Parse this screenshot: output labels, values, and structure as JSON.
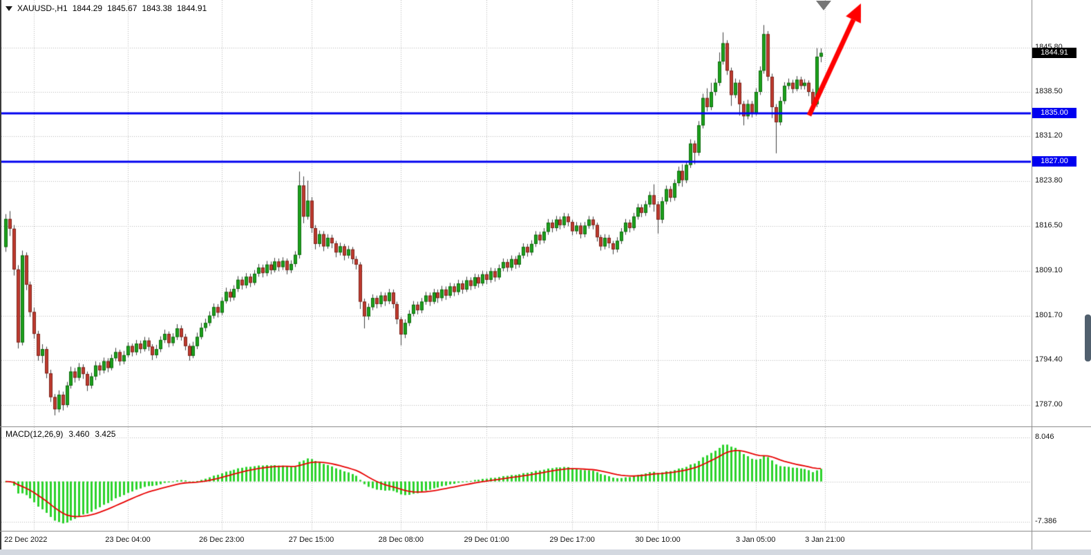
{
  "header": {
    "symbol": "XAUUSD-,H1",
    "open": "1844.29",
    "high": "1845.67",
    "low": "1843.38",
    "close": "1844.91"
  },
  "macd_header": {
    "title": "MACD(12,26,9)",
    "macd_value": "3.460",
    "signal_value": "3.425"
  },
  "colors": {
    "background": "#ffffff",
    "grid": "#b5b5b5",
    "bull": "#1ca11c",
    "bear": "#bf3a2e",
    "bull_border": "#0e6b0e",
    "bear_border": "#7d241c",
    "wick": "#3f3f3f",
    "hline": "#0000f0",
    "arrow": "#ff0000",
    "macd_histogram": "#2bd22b",
    "macd_signal": "#e80000",
    "current_badge_bg": "#000000",
    "badge_text": "#ffffff"
  },
  "chart_data": {
    "type": "candlestick",
    "symbol": "XAUUSD-",
    "timeframe": "H1",
    "title": "XAUUSD-,H1 1844.29 1845.67 1843.38 1844.91",
    "grid": true,
    "y_axis_side": "right",
    "ylim": [
      1783.0,
      1853.6
    ],
    "y_ticks": [
      {
        "label": "1845.80",
        "value": 1845.8
      },
      {
        "label": "1838.50",
        "value": 1838.5
      },
      {
        "label": "1831.20",
        "value": 1831.2
      },
      {
        "label": "1823.80",
        "value": 1823.8
      },
      {
        "label": "1816.50",
        "value": 1816.5
      },
      {
        "label": "1809.10",
        "value": 1809.1
      },
      {
        "label": "1801.70",
        "value": 1801.7
      },
      {
        "label": "1794.40",
        "value": 1794.4
      },
      {
        "label": "1787.00",
        "value": 1787.0
      }
    ],
    "x_ticks": [
      {
        "label": "22 Dec 2022",
        "bar": 7
      },
      {
        "label": "23 Dec 04:00",
        "bar": 30
      },
      {
        "label": "26 Dec 23:00",
        "bar": 53
      },
      {
        "label": "27 Dec 15:00",
        "bar": 75
      },
      {
        "label": "28 Dec 08:00",
        "bar": 97
      },
      {
        "label": "29 Dec 01:00",
        "bar": 118
      },
      {
        "label": "29 Dec 17:00",
        "bar": 139
      },
      {
        "label": "30 Dec 10:00",
        "bar": 160
      },
      {
        "label": "3 Jan 05:00",
        "bar": 184
      },
      {
        "label": "3 Jan 21:00",
        "bar": 201
      }
    ],
    "current_price": {
      "label": "1844.91",
      "value": 1844.91
    },
    "hlines": [
      {
        "label": "1835.00",
        "value": 1835.0
      },
      {
        "label": "1827.00",
        "value": 1827.0
      }
    ],
    "candles": [
      [
        1813.0,
        1818.4,
        1812.2,
        1817.6
      ],
      [
        1817.6,
        1818.9,
        1814.8,
        1816.0
      ],
      [
        1816.0,
        1816.6,
        1808.3,
        1809.3
      ],
      [
        1809.3,
        1810.0,
        1796.3,
        1797.3
      ],
      [
        1797.3,
        1812.4,
        1796.8,
        1811.6
      ],
      [
        1811.6,
        1812.1,
        1805.9,
        1806.8
      ],
      [
        1806.8,
        1807.3,
        1801.5,
        1802.3
      ],
      [
        1802.3,
        1803.0,
        1797.9,
        1798.7
      ],
      [
        1798.7,
        1799.2,
        1794.3,
        1795.1
      ],
      [
        1795.1,
        1797.0,
        1793.9,
        1796.2
      ],
      [
        1796.2,
        1796.6,
        1791.4,
        1792.2
      ],
      [
        1792.2,
        1792.8,
        1787.5,
        1788.3
      ],
      [
        1788.3,
        1788.8,
        1785.3,
        1786.3
      ],
      [
        1786.3,
        1789.4,
        1785.8,
        1788.7
      ],
      [
        1788.7,
        1789.2,
        1786.1,
        1787.0
      ],
      [
        1787.0,
        1790.8,
        1786.6,
        1790.2
      ],
      [
        1790.2,
        1793.3,
        1789.7,
        1792.5
      ],
      [
        1792.5,
        1793.1,
        1790.7,
        1791.5
      ],
      [
        1791.5,
        1793.9,
        1791.0,
        1793.2
      ],
      [
        1793.2,
        1793.7,
        1791.3,
        1792.1
      ],
      [
        1792.1,
        1792.5,
        1789.3,
        1790.2
      ],
      [
        1790.2,
        1792.3,
        1789.7,
        1791.7
      ],
      [
        1791.7,
        1794.2,
        1791.1,
        1793.5
      ],
      [
        1793.5,
        1794.0,
        1791.9,
        1792.7
      ],
      [
        1792.7,
        1794.8,
        1792.2,
        1794.2
      ],
      [
        1794.2,
        1794.7,
        1792.4,
        1793.1
      ],
      [
        1793.1,
        1795.3,
        1792.7,
        1794.7
      ],
      [
        1794.7,
        1796.4,
        1794.2,
        1795.7
      ],
      [
        1795.7,
        1796.1,
        1793.5,
        1794.2
      ],
      [
        1794.2,
        1795.9,
        1793.7,
        1795.2
      ],
      [
        1795.2,
        1797.3,
        1794.8,
        1796.7
      ],
      [
        1796.7,
        1797.1,
        1795.0,
        1795.7
      ],
      [
        1795.7,
        1797.7,
        1795.2,
        1797.1
      ],
      [
        1797.1,
        1797.6,
        1795.5,
        1796.2
      ],
      [
        1796.2,
        1798.2,
        1795.8,
        1797.6
      ],
      [
        1797.6,
        1798.1,
        1795.9,
        1796.6
      ],
      [
        1796.6,
        1797.0,
        1794.4,
        1795.2
      ],
      [
        1795.2,
        1796.9,
        1794.7,
        1796.2
      ],
      [
        1796.2,
        1798.3,
        1795.7,
        1797.7
      ],
      [
        1797.7,
        1799.4,
        1797.2,
        1798.7
      ],
      [
        1798.7,
        1799.1,
        1796.5,
        1797.2
      ],
      [
        1797.2,
        1798.8,
        1796.7,
        1798.2
      ],
      [
        1798.2,
        1800.3,
        1797.7,
        1799.6
      ],
      [
        1799.6,
        1800.1,
        1797.6,
        1798.2
      ],
      [
        1798.2,
        1798.7,
        1796.0,
        1796.7
      ],
      [
        1796.7,
        1797.1,
        1794.3,
        1795.1
      ],
      [
        1795.1,
        1797.4,
        1794.7,
        1796.7
      ],
      [
        1796.7,
        1798.9,
        1796.2,
        1798.2
      ],
      [
        1798.2,
        1800.5,
        1797.8,
        1799.7
      ],
      [
        1799.7,
        1801.2,
        1799.1,
        1800.5
      ],
      [
        1800.5,
        1802.4,
        1800.0,
        1801.7
      ],
      [
        1801.7,
        1803.7,
        1801.2,
        1803.1
      ],
      [
        1803.1,
        1803.6,
        1801.4,
        1802.2
      ],
      [
        1802.2,
        1804.7,
        1801.8,
        1804.1
      ],
      [
        1804.1,
        1806.3,
        1803.7,
        1805.6
      ],
      [
        1805.6,
        1806.1,
        1804.0,
        1804.7
      ],
      [
        1804.7,
        1806.7,
        1804.2,
        1806.1
      ],
      [
        1806.1,
        1808.2,
        1805.6,
        1807.6
      ],
      [
        1807.6,
        1808.1,
        1806.0,
        1806.7
      ],
      [
        1806.7,
        1808.7,
        1806.2,
        1808.1
      ],
      [
        1808.1,
        1808.6,
        1806.4,
        1807.1
      ],
      [
        1807.1,
        1809.2,
        1806.7,
        1808.6
      ],
      [
        1808.6,
        1810.2,
        1808.1,
        1809.6
      ],
      [
        1809.6,
        1810.1,
        1808.0,
        1808.7
      ],
      [
        1808.7,
        1810.7,
        1808.2,
        1810.1
      ],
      [
        1810.1,
        1810.6,
        1808.5,
        1809.2
      ],
      [
        1809.2,
        1811.2,
        1808.8,
        1810.6
      ],
      [
        1810.6,
        1811.1,
        1809.0,
        1809.7
      ],
      [
        1809.7,
        1811.3,
        1809.2,
        1810.7
      ],
      [
        1810.7,
        1811.1,
        1808.5,
        1809.2
      ],
      [
        1809.2,
        1810.8,
        1808.7,
        1810.2
      ],
      [
        1810.2,
        1812.3,
        1809.7,
        1811.7
      ],
      [
        1811.7,
        1825.4,
        1811.1,
        1823.1
      ],
      [
        1823.1,
        1824.6,
        1816.9,
        1818.0
      ],
      [
        1818.0,
        1823.9,
        1817.5,
        1820.6
      ],
      [
        1820.6,
        1821.2,
        1815.3,
        1816.1
      ],
      [
        1816.1,
        1816.6,
        1812.6,
        1813.5
      ],
      [
        1813.5,
        1815.7,
        1813.0,
        1815.1
      ],
      [
        1815.1,
        1815.6,
        1812.3,
        1813.1
      ],
      [
        1813.1,
        1815.1,
        1812.7,
        1814.5
      ],
      [
        1814.5,
        1815.0,
        1812.8,
        1813.6
      ],
      [
        1813.6,
        1814.0,
        1811.3,
        1812.1
      ],
      [
        1812.1,
        1813.7,
        1811.6,
        1813.1
      ],
      [
        1813.1,
        1813.5,
        1810.8,
        1811.6
      ],
      [
        1811.6,
        1813.2,
        1811.1,
        1812.6
      ],
      [
        1812.6,
        1813.0,
        1810.2,
        1811.0
      ],
      [
        1811.0,
        1811.5,
        1809.3,
        1810.1
      ],
      [
        1810.1,
        1810.5,
        1802.8,
        1804.0
      ],
      [
        1804.0,
        1804.5,
        1799.6,
        1801.6
      ],
      [
        1801.6,
        1803.7,
        1801.0,
        1803.1
      ],
      [
        1803.1,
        1805.2,
        1802.6,
        1804.6
      ],
      [
        1804.6,
        1805.0,
        1802.9,
        1803.6
      ],
      [
        1803.6,
        1805.6,
        1803.1,
        1805.0
      ],
      [
        1805.0,
        1805.5,
        1803.3,
        1804.1
      ],
      [
        1804.1,
        1806.1,
        1803.6,
        1805.5
      ],
      [
        1805.5,
        1806.0,
        1802.9,
        1803.6
      ],
      [
        1803.6,
        1804.0,
        1800.3,
        1801.1
      ],
      [
        1801.1,
        1801.5,
        1796.8,
        1798.6
      ],
      [
        1798.6,
        1801.1,
        1798.0,
        1800.5
      ],
      [
        1800.5,
        1802.6,
        1800.0,
        1802.0
      ],
      [
        1802.0,
        1804.1,
        1801.6,
        1803.5
      ],
      [
        1803.5,
        1804.0,
        1801.9,
        1802.6
      ],
      [
        1802.6,
        1804.6,
        1802.1,
        1804.0
      ],
      [
        1804.0,
        1805.6,
        1803.5,
        1805.0
      ],
      [
        1805.0,
        1805.5,
        1803.3,
        1804.0
      ],
      [
        1804.0,
        1806.1,
        1803.6,
        1805.5
      ],
      [
        1805.5,
        1806.0,
        1803.8,
        1804.6
      ],
      [
        1804.6,
        1806.6,
        1804.1,
        1806.0
      ],
      [
        1806.0,
        1806.5,
        1804.3,
        1805.0
      ],
      [
        1805.0,
        1807.1,
        1804.6,
        1806.5
      ],
      [
        1806.5,
        1807.0,
        1804.9,
        1805.6
      ],
      [
        1805.6,
        1807.6,
        1805.1,
        1807.0
      ],
      [
        1807.0,
        1807.5,
        1805.3,
        1806.0
      ],
      [
        1806.0,
        1808.1,
        1805.6,
        1807.5
      ],
      [
        1807.5,
        1808.0,
        1805.9,
        1806.6
      ],
      [
        1806.6,
        1808.6,
        1806.1,
        1808.0
      ],
      [
        1808.0,
        1808.5,
        1806.3,
        1807.0
      ],
      [
        1807.0,
        1809.1,
        1806.6,
        1808.5
      ],
      [
        1808.5,
        1809.0,
        1806.9,
        1807.6
      ],
      [
        1807.6,
        1809.6,
        1807.1,
        1809.0
      ],
      [
        1809.0,
        1809.5,
        1807.3,
        1808.0
      ],
      [
        1808.0,
        1810.1,
        1807.6,
        1809.5
      ],
      [
        1809.5,
        1811.1,
        1809.0,
        1810.5
      ],
      [
        1810.5,
        1811.0,
        1808.9,
        1809.6
      ],
      [
        1809.6,
        1811.6,
        1809.1,
        1811.0
      ],
      [
        1811.0,
        1811.5,
        1809.4,
        1810.1
      ],
      [
        1810.1,
        1812.1,
        1809.6,
        1811.6
      ],
      [
        1811.6,
        1813.6,
        1811.1,
        1813.0
      ],
      [
        1813.0,
        1813.5,
        1811.4,
        1812.1
      ],
      [
        1812.1,
        1814.1,
        1811.6,
        1813.5
      ],
      [
        1813.5,
        1815.6,
        1813.0,
        1815.0
      ],
      [
        1815.0,
        1815.5,
        1813.4,
        1814.1
      ],
      [
        1814.1,
        1816.1,
        1813.6,
        1815.5
      ],
      [
        1815.5,
        1817.6,
        1815.0,
        1817.0
      ],
      [
        1817.0,
        1817.5,
        1815.4,
        1816.1
      ],
      [
        1816.1,
        1818.1,
        1815.6,
        1817.5
      ],
      [
        1817.5,
        1818.0,
        1815.9,
        1816.6
      ],
      [
        1816.6,
        1818.6,
        1816.1,
        1818.0
      ],
      [
        1818.0,
        1818.5,
        1816.4,
        1817.1
      ],
      [
        1817.1,
        1817.5,
        1814.9,
        1815.6
      ],
      [
        1815.6,
        1817.1,
        1815.1,
        1816.5
      ],
      [
        1816.5,
        1817.0,
        1814.4,
        1815.1
      ],
      [
        1815.1,
        1817.1,
        1814.6,
        1816.5
      ],
      [
        1816.5,
        1818.1,
        1816.0,
        1817.5
      ],
      [
        1817.5,
        1818.0,
        1815.9,
        1816.6
      ],
      [
        1816.6,
        1817.0,
        1813.9,
        1814.6
      ],
      [
        1814.6,
        1815.0,
        1812.4,
        1813.1
      ],
      [
        1813.1,
        1815.1,
        1812.6,
        1814.5
      ],
      [
        1814.5,
        1815.0,
        1812.8,
        1813.6
      ],
      [
        1813.6,
        1814.0,
        1811.8,
        1812.6
      ],
      [
        1812.6,
        1814.6,
        1812.1,
        1814.0
      ],
      [
        1814.0,
        1816.1,
        1813.5,
        1815.5
      ],
      [
        1815.5,
        1817.6,
        1815.0,
        1817.0
      ],
      [
        1817.0,
        1817.5,
        1815.4,
        1816.1
      ],
      [
        1816.1,
        1818.6,
        1815.7,
        1818.0
      ],
      [
        1818.0,
        1820.1,
        1817.5,
        1819.5
      ],
      [
        1819.5,
        1820.0,
        1817.9,
        1818.6
      ],
      [
        1818.6,
        1820.6,
        1818.1,
        1820.0
      ],
      [
        1820.0,
        1822.1,
        1819.5,
        1821.5
      ],
      [
        1821.5,
        1823.3,
        1818.8,
        1820.0
      ],
      [
        1820.0,
        1820.5,
        1815.2,
        1817.5
      ],
      [
        1817.5,
        1821.2,
        1816.9,
        1820.5
      ],
      [
        1820.5,
        1823.1,
        1820.0,
        1822.5
      ],
      [
        1822.5,
        1823.0,
        1820.4,
        1821.1
      ],
      [
        1821.1,
        1824.1,
        1820.6,
        1823.5
      ],
      [
        1823.5,
        1826.2,
        1823.0,
        1825.5
      ],
      [
        1825.5,
        1826.6,
        1822.9,
        1824.0
      ],
      [
        1824.0,
        1827.1,
        1823.5,
        1826.5
      ],
      [
        1826.5,
        1830.7,
        1826.0,
        1830.0
      ],
      [
        1830.0,
        1830.5,
        1826.6,
        1828.5
      ],
      [
        1828.5,
        1833.7,
        1828.0,
        1833.0
      ],
      [
        1833.0,
        1838.2,
        1832.5,
        1837.5
      ],
      [
        1837.5,
        1839.1,
        1835.3,
        1836.0
      ],
      [
        1836.0,
        1840.0,
        1835.5,
        1838.5
      ],
      [
        1838.5,
        1840.7,
        1837.9,
        1840.0
      ],
      [
        1840.0,
        1845.0,
        1839.5,
        1843.5
      ],
      [
        1843.5,
        1848.3,
        1843.0,
        1846.5
      ],
      [
        1846.5,
        1847.0,
        1841.3,
        1842.0
      ],
      [
        1842.0,
        1842.5,
        1836.2,
        1838.0
      ],
      [
        1838.0,
        1840.7,
        1837.5,
        1840.0
      ],
      [
        1840.0,
        1840.5,
        1834.6,
        1836.5
      ],
      [
        1836.5,
        1837.0,
        1833.0,
        1834.5
      ],
      [
        1834.5,
        1837.2,
        1834.0,
        1836.5
      ],
      [
        1836.5,
        1837.0,
        1834.3,
        1835.0
      ],
      [
        1835.0,
        1839.1,
        1834.6,
        1838.5
      ],
      [
        1838.5,
        1842.7,
        1838.0,
        1842.0
      ],
      [
        1842.0,
        1849.5,
        1841.5,
        1848.0
      ],
      [
        1848.0,
        1848.5,
        1840.3,
        1841.0
      ],
      [
        1841.0,
        1841.5,
        1834.2,
        1836.0
      ],
      [
        1836.0,
        1836.5,
        1828.4,
        1833.5
      ],
      [
        1833.5,
        1837.7,
        1833.0,
        1837.0
      ],
      [
        1837.0,
        1840.1,
        1836.5,
        1839.5
      ],
      [
        1839.5,
        1840.7,
        1838.9,
        1840.0
      ],
      [
        1840.0,
        1840.5,
        1838.3,
        1839.0
      ],
      [
        1839.0,
        1841.1,
        1838.6,
        1840.5
      ],
      [
        1840.5,
        1841.0,
        1838.9,
        1839.5
      ],
      [
        1839.5,
        1840.6,
        1838.9,
        1840.0
      ],
      [
        1840.0,
        1840.4,
        1837.8,
        1838.5
      ],
      [
        1838.5,
        1839.0,
        1835.2,
        1836.5
      ],
      [
        1836.5,
        1845.7,
        1836.0,
        1844.3
      ],
      [
        1844.29,
        1845.67,
        1843.38,
        1844.91
      ]
    ],
    "macd": {
      "params": [
        12,
        26,
        9
      ],
      "current_macd": 3.46,
      "current_signal": 3.425,
      "zero_level": 0,
      "axis_ticks": [
        {
          "label": "8.046",
          "value": 8.046
        },
        {
          "label": "-7.386",
          "value": -7.386
        }
      ]
    }
  },
  "annotations": {
    "up_arrow": {
      "tail_x": 1171,
      "tail_y": 167,
      "tip_x": 1246,
      "tip_y": 5
    },
    "top_triangle_marker": {
      "shape": "triangle-down",
      "color": "#777777"
    }
  }
}
